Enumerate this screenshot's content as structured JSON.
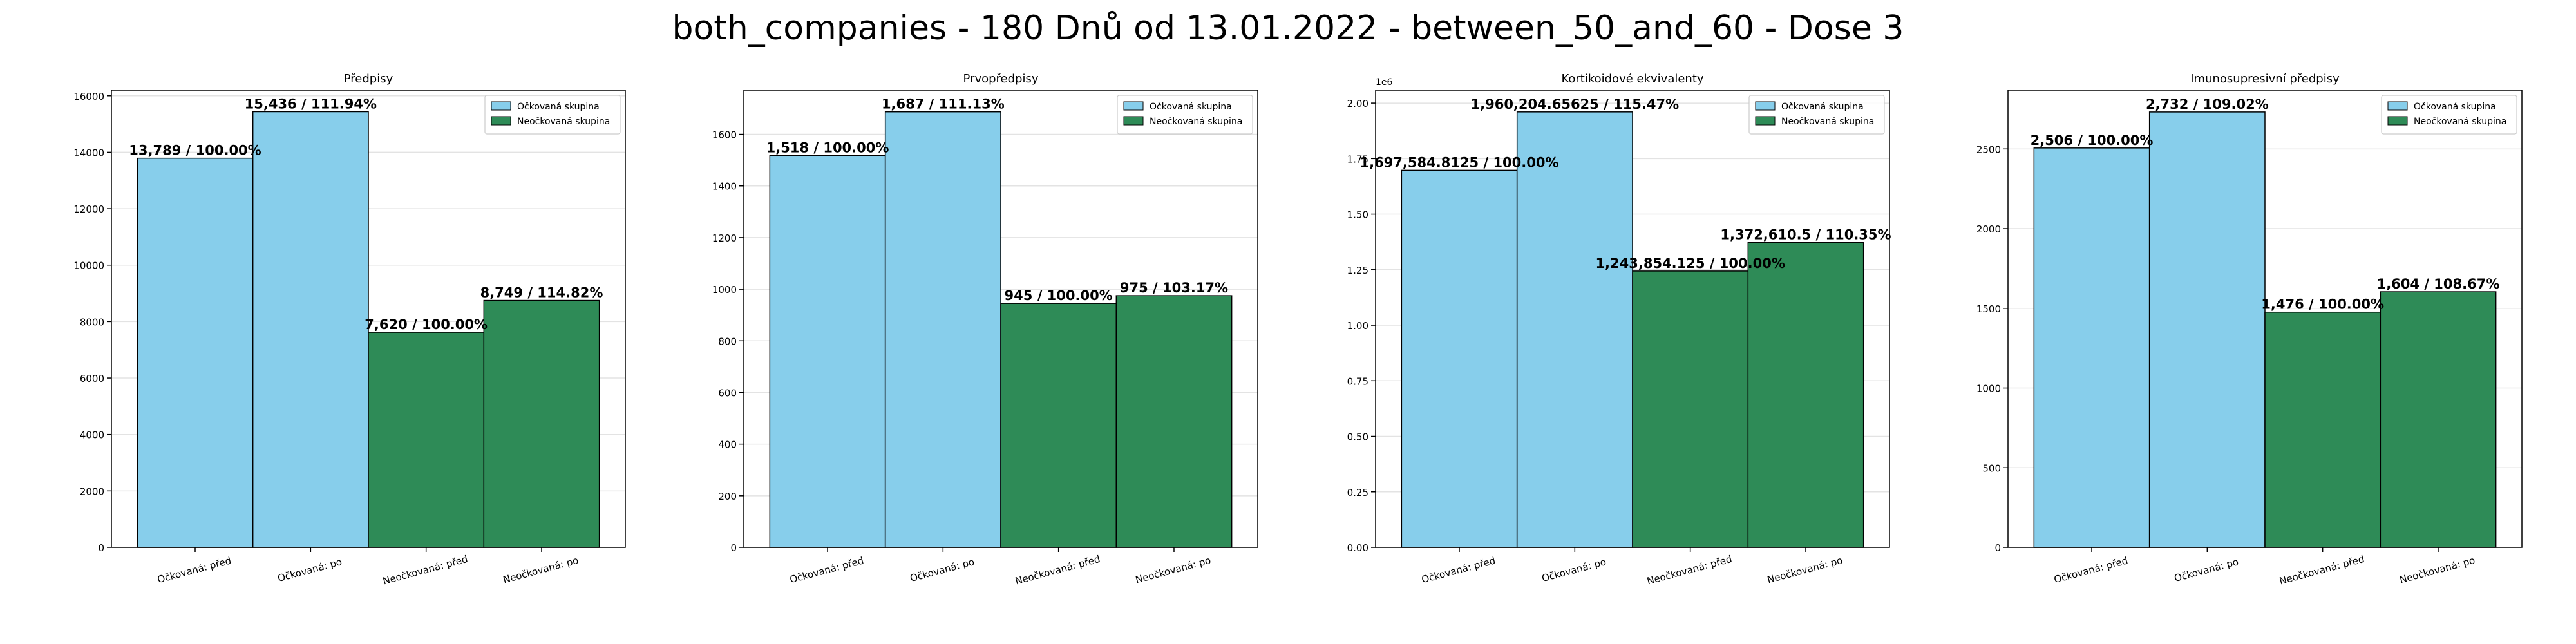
{
  "suptitle": "both_companies - 180 Dnů od 13.01.2022 - between_50_and_60 - Dose 3",
  "colors": {
    "vaccinated": "#87CEEB",
    "unvaccinated": "#2E8B57",
    "edge": "#000000"
  },
  "legend": [
    "Očkovaná skupina",
    "Neočkovaná skupina"
  ],
  "chart_data": [
    {
      "type": "bar",
      "title": "Předpisy",
      "categories": [
        "Očkovaná: před",
        "Očkovaná: po",
        "Neočkovaná: před",
        "Neočkovaná: po"
      ],
      "values": [
        13789,
        15436,
        7620,
        8749
      ],
      "labels": [
        "13,789 / 100.00%",
        "15,436 / 111.94%",
        "7,620 / 100.00%",
        "8,749 / 114.82%"
      ],
      "groups": [
        "vaccinated",
        "vaccinated",
        "unvaccinated",
        "unvaccinated"
      ],
      "ylim": [
        0,
        16200
      ],
      "yticks": [
        0,
        2000,
        4000,
        6000,
        8000,
        10000,
        12000,
        14000,
        16000
      ],
      "ytick_labels": [
        "0",
        "2000",
        "4000",
        "6000",
        "8000",
        "10000",
        "12000",
        "14000",
        "16000"
      ],
      "offset_text": "",
      "grid": true,
      "legend_loc": "upper right"
    },
    {
      "type": "bar",
      "title": "Prvopředpisy",
      "categories": [
        "Očkovaná: před",
        "Očkovaná: po",
        "Neočkovaná: před",
        "Neočkovaná: po"
      ],
      "values": [
        1518,
        1687,
        945,
        975
      ],
      "labels": [
        "1,518 / 100.00%",
        "1,687 / 111.13%",
        "945 / 100.00%",
        "975 / 103.17%"
      ],
      "groups": [
        "vaccinated",
        "vaccinated",
        "unvaccinated",
        "unvaccinated"
      ],
      "ylim": [
        0,
        1771
      ],
      "yticks": [
        0,
        200,
        400,
        600,
        800,
        1000,
        1200,
        1400,
        1600
      ],
      "ytick_labels": [
        "0",
        "200",
        "400",
        "600",
        "800",
        "1000",
        "1200",
        "1400",
        "1600"
      ],
      "offset_text": "",
      "grid": true,
      "legend_loc": "upper right"
    },
    {
      "type": "bar",
      "title": "Kortikoidové ekvivalenty",
      "categories": [
        "Očkovaná: před",
        "Očkovaná: po",
        "Neočkovaná: před",
        "Neočkovaná: po"
      ],
      "values": [
        1697584.8125,
        1960204.65625,
        1243854.125,
        1372610.5
      ],
      "labels": [
        "1,697,584.8125 / 100.00%",
        "1,960,204.65625 / 115.47%",
        "1,243,854.125 / 100.00%",
        "1,372,610.5 / 110.35%"
      ],
      "groups": [
        "vaccinated",
        "vaccinated",
        "unvaccinated",
        "unvaccinated"
      ],
      "ylim": [
        0,
        2058215
      ],
      "yticks": [
        0,
        250000,
        500000,
        750000,
        1000000,
        1250000,
        1500000,
        1750000,
        2000000
      ],
      "ytick_labels": [
        "0.00",
        "0.25",
        "0.50",
        "0.75",
        "1.00",
        "1.25",
        "1.50",
        "1.75",
        "2.00"
      ],
      "offset_text": "1e6",
      "grid": true,
      "legend_loc": "upper right"
    },
    {
      "type": "bar",
      "title": "Imunosupresivní předpisy",
      "categories": [
        "Očkovaná: před",
        "Očkovaná: po",
        "Neočkovaná: před",
        "Neočkovaná: po"
      ],
      "values": [
        2506,
        2732,
        1476,
        1604
      ],
      "labels": [
        "2,506 / 100.00%",
        "2,732 / 109.02%",
        "1,476 / 100.00%",
        "1,604 / 108.67%"
      ],
      "groups": [
        "vaccinated",
        "vaccinated",
        "unvaccinated",
        "unvaccinated"
      ],
      "ylim": [
        0,
        2869
      ],
      "yticks": [
        0,
        500,
        1000,
        1500,
        2000,
        2500
      ],
      "ytick_labels": [
        "0",
        "500",
        "1000",
        "1500",
        "2000",
        "2500"
      ],
      "offset_text": "",
      "grid": true,
      "legend_loc": "upper right"
    }
  ]
}
